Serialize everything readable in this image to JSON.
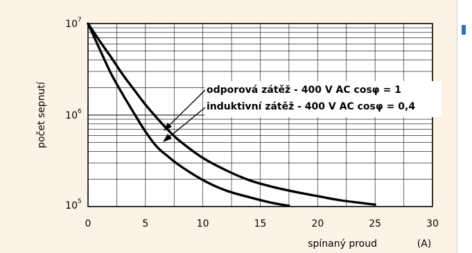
{
  "chart_data": {
    "type": "line",
    "xlabel": "spínaný proud",
    "xunit": "(A)",
    "ylabel": "počet sepnutí",
    "xlim": [
      0,
      30
    ],
    "ylim": [
      100000,
      10000000
    ],
    "yscale": "log",
    "grid": true,
    "x_ticks": [
      "0",
      "5",
      "10",
      "15",
      "20",
      "25",
      "30"
    ],
    "y_ticks": [
      {
        "base": "10",
        "exp": "7"
      },
      {
        "base": "10",
        "exp": "6"
      },
      {
        "base": "10",
        "exp": "5"
      }
    ],
    "series": [
      {
        "name": "odporová zátěž - 400 V AC cosφ = 1",
        "x": [
          0,
          1,
          2,
          3,
          4,
          5,
          6,
          7,
          8,
          10,
          12,
          14,
          16,
          18,
          20,
          22,
          25
        ],
        "y": [
          10000000,
          6500000,
          4300000,
          2800000,
          1900000,
          1300000,
          930000,
          680000,
          520000,
          340000,
          250000,
          195000,
          165000,
          145000,
          130000,
          117000,
          105000
        ]
      },
      {
        "name": "induktivní zátěž - 400 V AC cosφ = 0,4",
        "x": [
          0,
          1,
          2,
          3,
          4,
          5,
          6,
          7,
          8,
          10,
          12,
          14,
          16,
          17.5
        ],
        "y": [
          10000000,
          5300000,
          2850000,
          1700000,
          1050000,
          660000,
          450000,
          350000,
          280000,
          195000,
          150000,
          127000,
          110000,
          102000
        ]
      }
    ]
  }
}
